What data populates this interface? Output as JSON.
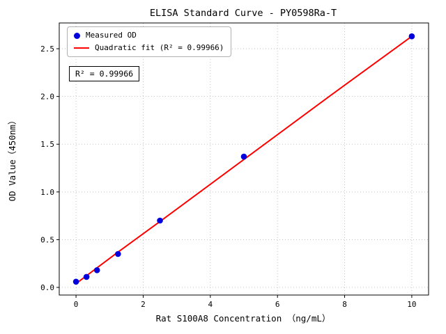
{
  "chart_data": {
    "type": "scatter",
    "title": "ELISA Standard Curve - PY0598Ra-T",
    "xlabel": "Rat S100A8 Concentration （ng/mL）",
    "ylabel": "OD Value（450nm）",
    "annotation": "R² = 0.99966",
    "xlim": [
      -0.5,
      10.5
    ],
    "ylim": [
      -0.08,
      2.77
    ],
    "xticks": [
      0,
      2,
      4,
      6,
      8,
      10
    ],
    "yticks": [
      0.0,
      0.5,
      1.0,
      1.5,
      2.0,
      2.5
    ],
    "grid": true,
    "grid_style": "dotted",
    "legend_position": "upper-left",
    "frame_color": "#000000",
    "series": [
      {
        "name": "Measured OD",
        "type": "scatter",
        "color": "#0000dd",
        "x": [
          0,
          0.3125,
          0.625,
          1.25,
          2.5,
          5,
          10
        ],
        "y": [
          0.06,
          0.11,
          0.18,
          0.35,
          0.7,
          1.37,
          2.63
        ]
      },
      {
        "name": "Quadratic fit (R² = 0.99966)",
        "type": "line",
        "color": "#ff0000",
        "x": [
          0,
          1.25,
          2.5,
          5,
          7.5,
          10
        ],
        "y": [
          0.04,
          0.37,
          0.69,
          1.34,
          1.99,
          2.63
        ]
      }
    ]
  }
}
